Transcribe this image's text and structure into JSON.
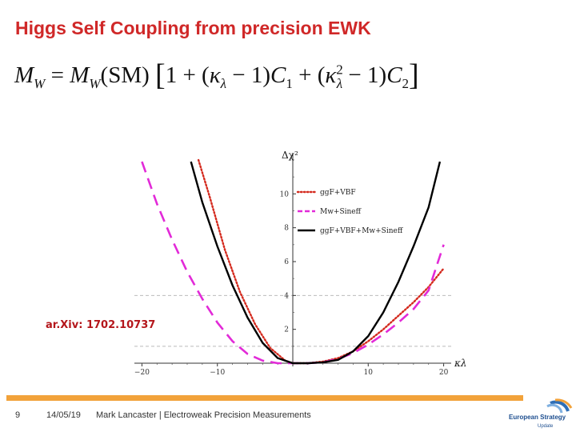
{
  "slide": {
    "title": "Higgs Self Coupling from precision EWK",
    "formula": {
      "lhs_symbol": "M",
      "lhs_sub": "W",
      "rhs_symbol": "M",
      "rhs_sub": "W",
      "sm": "(SM)",
      "kappa": "κ",
      "kappa_sub": "λ",
      "c1": "C",
      "c1_sub": "1",
      "c2": "C",
      "c2_sub": "2"
    },
    "reference": "ar.Xiv: 1702.10737"
  },
  "footer": {
    "page_number": "9",
    "date": "14/05/19",
    "author_line": "Mark Lancaster | Electroweak Precision Measurements",
    "logo_text": "European Strategy",
    "logo_subtext": "Update"
  },
  "colors": {
    "title": "#d02828",
    "reference": "#b4161b",
    "footer_bar": "#f2a23a",
    "series_ggf_vbf": "#d42a1e",
    "series_mw_sineff": "#e22ad8",
    "series_combined": "#000000"
  },
  "chart_data": {
    "type": "line",
    "xlabel": "κλ",
    "ylabel": "Δχ²",
    "xlim": [
      -21,
      21
    ],
    "ylim": [
      0,
      12
    ],
    "x_ticks": [
      -20,
      -10,
      0,
      10,
      20
    ],
    "x_tick_labels": [
      "−20",
      "−10",
      "",
      "10",
      "20"
    ],
    "y_ticks": [
      2,
      4,
      6,
      8,
      10
    ],
    "y_tick_labels": [
      "2",
      "4",
      "6",
      "8",
      "10"
    ],
    "reference_lines_y": [
      1,
      4
    ],
    "grid": false,
    "legend_position": "top-right",
    "series": [
      {
        "name": "ggF+VBF",
        "style": "dotted",
        "points": [
          [
            -12.5,
            12
          ],
          [
            -11,
            9.8
          ],
          [
            -9,
            6.7
          ],
          [
            -7,
            4.2
          ],
          [
            -5,
            2.3
          ],
          [
            -3,
            0.9
          ],
          [
            -1,
            0.15
          ],
          [
            0,
            0
          ],
          [
            2,
            0
          ],
          [
            4,
            0.1
          ],
          [
            6,
            0.3
          ],
          [
            8,
            0.7
          ],
          [
            10,
            1.3
          ],
          [
            12,
            2.0
          ],
          [
            14,
            2.8
          ],
          [
            16,
            3.6
          ],
          [
            18,
            4.5
          ],
          [
            20,
            5.6
          ]
        ]
      },
      {
        "name": "Mw+Sineff",
        "style": "dashed",
        "points": [
          [
            -20,
            11.9
          ],
          [
            -18,
            9.4
          ],
          [
            -16,
            7.3
          ],
          [
            -14,
            5.4
          ],
          [
            -12,
            3.8
          ],
          [
            -10,
            2.4
          ],
          [
            -8,
            1.3
          ],
          [
            -6,
            0.55
          ],
          [
            -4,
            0.15
          ],
          [
            -2,
            0
          ],
          [
            0,
            0
          ],
          [
            2,
            0
          ],
          [
            4,
            0.05
          ],
          [
            6,
            0.25
          ],
          [
            8,
            0.6
          ],
          [
            10,
            1.1
          ],
          [
            12,
            1.7
          ],
          [
            14,
            2.4
          ],
          [
            16,
            3.2
          ],
          [
            18,
            4.3
          ],
          [
            20,
            7.0
          ]
        ]
      },
      {
        "name": "ggF+VBF+Mw+Sineff",
        "style": "solid",
        "points": [
          [
            -13.5,
            11.9
          ],
          [
            -12,
            9.5
          ],
          [
            -10,
            6.9
          ],
          [
            -8,
            4.6
          ],
          [
            -6,
            2.7
          ],
          [
            -4,
            1.2
          ],
          [
            -2,
            0.3
          ],
          [
            0,
            0
          ],
          [
            2,
            0
          ],
          [
            4,
            0.05
          ],
          [
            6,
            0.2
          ],
          [
            8,
            0.7
          ],
          [
            10,
            1.6
          ],
          [
            12,
            3.0
          ],
          [
            14,
            4.8
          ],
          [
            16,
            6.9
          ],
          [
            18,
            9.2
          ],
          [
            19.5,
            11.9
          ]
        ]
      }
    ]
  }
}
